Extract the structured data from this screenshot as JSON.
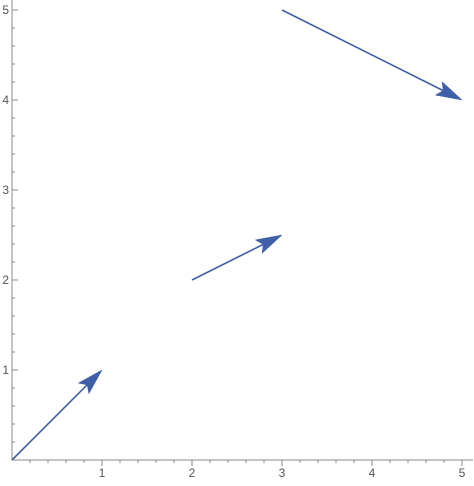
{
  "chart_data": {
    "type": "vector",
    "title": "",
    "xlabel": "",
    "ylabel": "",
    "xlim": [
      0,
      5
    ],
    "ylim": [
      0,
      5
    ],
    "x_ticks": [
      "1",
      "2",
      "3",
      "4",
      "5"
    ],
    "y_ticks": [
      "1",
      "2",
      "3",
      "4",
      "5"
    ],
    "grid": false,
    "arrow_color": "#3f5fa8",
    "axis_color": "#8a8a8a",
    "tick_label_color": "#555555",
    "arrows": [
      {
        "from": [
          0,
          0
        ],
        "to": [
          1,
          1
        ]
      },
      {
        "from": [
          2,
          2
        ],
        "to": [
          3,
          2.5
        ]
      },
      {
        "from": [
          3,
          5
        ],
        "to": [
          5,
          4
        ]
      }
    ]
  }
}
